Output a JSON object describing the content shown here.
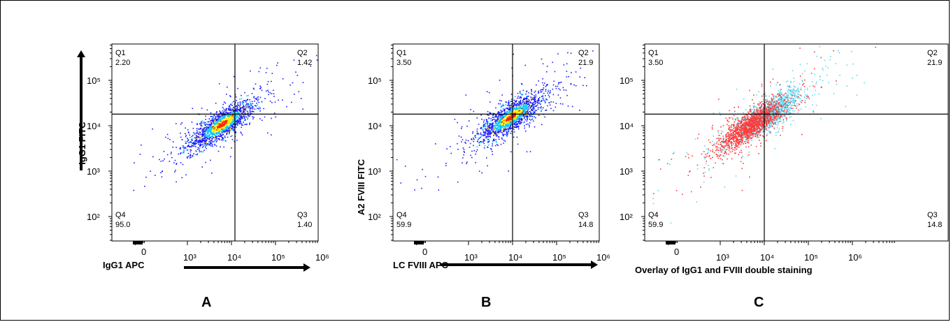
{
  "figure": {
    "panel_letters": [
      "A",
      "B",
      "C"
    ]
  },
  "colors": {
    "density_low": "#1a1aff",
    "density_mid": "#00c8ff",
    "density_high": "#ffee00",
    "density_peak": "#ff2200",
    "overlay_igg1": "#ff3b3b",
    "overlay_fviii": "#5fd6f0"
  },
  "chart_data": [
    {
      "type": "scatter",
      "panel": "A",
      "xlabel": "IgG1 APC",
      "ylabel": "IgG1 FITC",
      "x_scale": "biexponential",
      "y_scale": "biexponential",
      "x_ticks": [
        "0",
        "10³",
        "10⁴",
        "10⁵",
        "10⁶"
      ],
      "y_ticks": [
        "10²",
        "10³",
        "10⁴",
        "10⁵"
      ],
      "gate": {
        "x": 12000,
        "y": 18000
      },
      "quadrants": [
        {
          "name": "Q1",
          "value": "2.20"
        },
        {
          "name": "Q2",
          "value": "1.42"
        },
        {
          "name": "Q3",
          "value": "1.40"
        },
        {
          "name": "Q4",
          "value": "95.0"
        }
      ],
      "populations": [
        {
          "center_x": 6000,
          "center_y": 11000,
          "style": "density"
        }
      ]
    },
    {
      "type": "scatter",
      "panel": "B",
      "xlabel": "LC FVIII APC",
      "ylabel": "A2 FVIII FITC",
      "x_scale": "biexponential",
      "y_scale": "biexponential",
      "x_ticks": [
        "0",
        "10³",
        "10⁴",
        "10⁵",
        "10⁶"
      ],
      "y_ticks": [
        "10²",
        "10³",
        "10⁴",
        "10⁵"
      ],
      "gate": {
        "x": 10000,
        "y": 18000
      },
      "quadrants": [
        {
          "name": "Q1",
          "value": "3.50"
        },
        {
          "name": "Q2",
          "value": "21.9"
        },
        {
          "name": "Q3",
          "value": "14.8"
        },
        {
          "name": "Q4",
          "value": "59.9"
        }
      ],
      "populations": [
        {
          "center_x": 9000,
          "center_y": 16000,
          "style": "density"
        }
      ]
    },
    {
      "type": "scatter",
      "panel": "C",
      "xlabel": "Overlay of IgG1 and FVIII double staining",
      "ylabel": "",
      "x_scale": "biexponential",
      "y_scale": "biexponential",
      "x_ticks": [
        "0",
        "10³",
        "10⁴",
        "10⁵",
        "10⁶"
      ],
      "y_ticks": [
        "10²",
        "10³",
        "10⁴",
        "10⁵"
      ],
      "gate": {
        "x": 10000,
        "y": 18000
      },
      "quadrants": [
        {
          "name": "Q1",
          "value": "3.50"
        },
        {
          "name": "Q2",
          "value": "21.9"
        },
        {
          "name": "Q3",
          "value": "14.8"
        },
        {
          "name": "Q4",
          "value": "59.9"
        }
      ],
      "populations": [
        {
          "center_x": 12000,
          "center_y": 18000,
          "style": "overlay_fviii"
        },
        {
          "center_x": 5000,
          "center_y": 10500,
          "style": "overlay_igg1"
        }
      ]
    }
  ]
}
